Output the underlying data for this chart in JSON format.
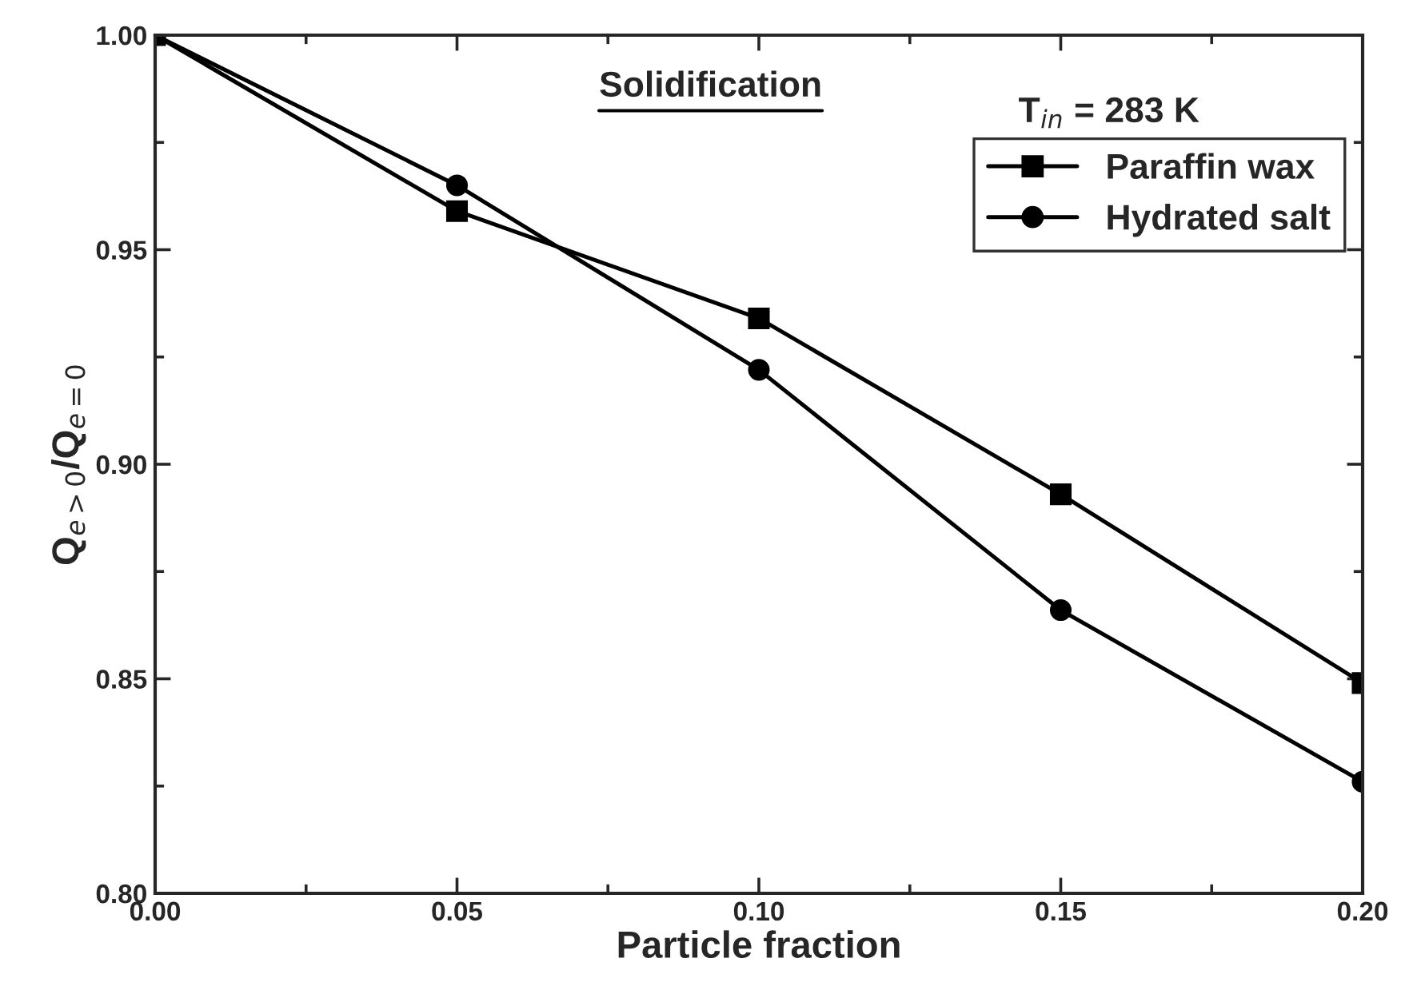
{
  "chart_data": {
    "type": "line",
    "xlabel": "Particle fraction",
    "ylabel": "Q$_{e>0}$/Q$_{e=0}$",
    "x": [
      0.0,
      0.05,
      0.1,
      0.15,
      0.2
    ],
    "series": [
      {
        "name": "Paraffin wax",
        "color": "#000000",
        "marker": "square",
        "values": [
          1.0,
          0.959,
          0.934,
          0.893,
          0.849
        ]
      },
      {
        "name": "Hydrated salt",
        "color": "#000000",
        "marker": "circle",
        "values": [
          1.0,
          0.965,
          0.922,
          0.866,
          0.826
        ]
      }
    ],
    "xlim": [
      0.0,
      0.2
    ],
    "xticks": [
      {
        "value": 0.0,
        "label": "0.00"
      },
      {
        "value": 0.05,
        "label": "0.05"
      },
      {
        "value": 0.1,
        "label": "0.10"
      },
      {
        "value": 0.15,
        "label": "0.15"
      },
      {
        "value": 0.2,
        "label": "0.20"
      }
    ],
    "ylim": [
      0.8,
      1.0
    ],
    "yticks": [
      {
        "value": 0.8,
        "label": "0.80"
      },
      {
        "value": 0.85,
        "label": "0.85"
      },
      {
        "value": 0.9,
        "label": "0.90"
      },
      {
        "value": 0.95,
        "label": "0.95"
      },
      {
        "value": 1.0,
        "label": "1.00"
      }
    ],
    "annotations": [
      "Solidification",
      "T$_{in}$ = 283 K"
    ],
    "legend": "top right",
    "grid": false,
    "line_style": "solid"
  }
}
